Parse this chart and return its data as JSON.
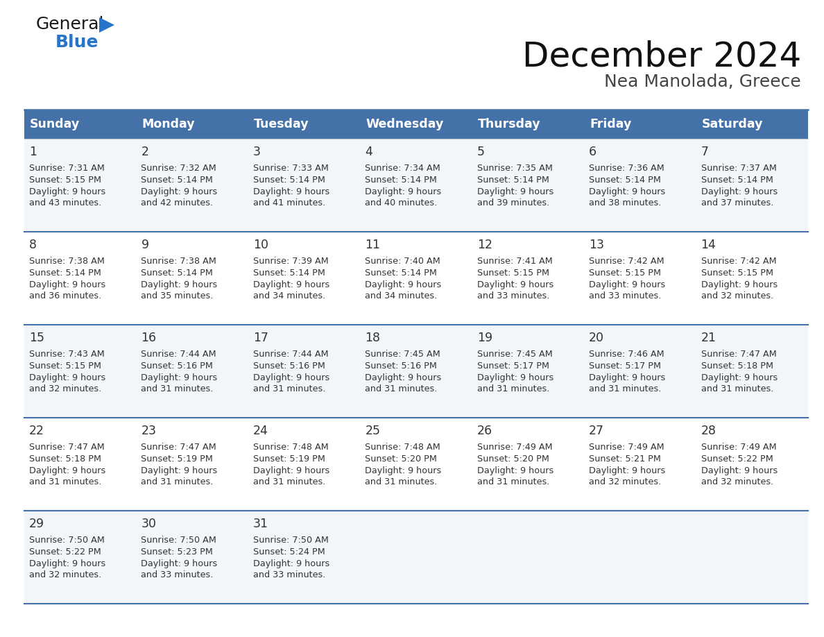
{
  "title": "December 2024",
  "subtitle": "Nea Manolada, Greece",
  "days_of_week": [
    "Sunday",
    "Monday",
    "Tuesday",
    "Wednesday",
    "Thursday",
    "Friday",
    "Saturday"
  ],
  "header_bg": "#4472a8",
  "header_text": "#ffffff",
  "row_bg_odd": "#f2f5f9",
  "row_bg_even": "#ffffff",
  "border_color": "#4472a8",
  "text_color": "#333333",
  "logo_color_general": "#1a1a1a",
  "logo_color_blue": "#2874c8",
  "logo_triangle_color": "#2874c8",
  "title_color": "#111111",
  "subtitle_color": "#444444",
  "calendar_data": [
    [
      {
        "day": 1,
        "sunrise": "7:31 AM",
        "sunset": "5:15 PM",
        "daylight": "9 hours\nand 43 minutes."
      },
      {
        "day": 2,
        "sunrise": "7:32 AM",
        "sunset": "5:14 PM",
        "daylight": "9 hours\nand 42 minutes."
      },
      {
        "day": 3,
        "sunrise": "7:33 AM",
        "sunset": "5:14 PM",
        "daylight": "9 hours\nand 41 minutes."
      },
      {
        "day": 4,
        "sunrise": "7:34 AM",
        "sunset": "5:14 PM",
        "daylight": "9 hours\nand 40 minutes."
      },
      {
        "day": 5,
        "sunrise": "7:35 AM",
        "sunset": "5:14 PM",
        "daylight": "9 hours\nand 39 minutes."
      },
      {
        "day": 6,
        "sunrise": "7:36 AM",
        "sunset": "5:14 PM",
        "daylight": "9 hours\nand 38 minutes."
      },
      {
        "day": 7,
        "sunrise": "7:37 AM",
        "sunset": "5:14 PM",
        "daylight": "9 hours\nand 37 minutes."
      }
    ],
    [
      {
        "day": 8,
        "sunrise": "7:38 AM",
        "sunset": "5:14 PM",
        "daylight": "9 hours\nand 36 minutes."
      },
      {
        "day": 9,
        "sunrise": "7:38 AM",
        "sunset": "5:14 PM",
        "daylight": "9 hours\nand 35 minutes."
      },
      {
        "day": 10,
        "sunrise": "7:39 AM",
        "sunset": "5:14 PM",
        "daylight": "9 hours\nand 34 minutes."
      },
      {
        "day": 11,
        "sunrise": "7:40 AM",
        "sunset": "5:14 PM",
        "daylight": "9 hours\nand 34 minutes."
      },
      {
        "day": 12,
        "sunrise": "7:41 AM",
        "sunset": "5:15 PM",
        "daylight": "9 hours\nand 33 minutes."
      },
      {
        "day": 13,
        "sunrise": "7:42 AM",
        "sunset": "5:15 PM",
        "daylight": "9 hours\nand 33 minutes."
      },
      {
        "day": 14,
        "sunrise": "7:42 AM",
        "sunset": "5:15 PM",
        "daylight": "9 hours\nand 32 minutes."
      }
    ],
    [
      {
        "day": 15,
        "sunrise": "7:43 AM",
        "sunset": "5:15 PM",
        "daylight": "9 hours\nand 32 minutes."
      },
      {
        "day": 16,
        "sunrise": "7:44 AM",
        "sunset": "5:16 PM",
        "daylight": "9 hours\nand 31 minutes."
      },
      {
        "day": 17,
        "sunrise": "7:44 AM",
        "sunset": "5:16 PM",
        "daylight": "9 hours\nand 31 minutes."
      },
      {
        "day": 18,
        "sunrise": "7:45 AM",
        "sunset": "5:16 PM",
        "daylight": "9 hours\nand 31 minutes."
      },
      {
        "day": 19,
        "sunrise": "7:45 AM",
        "sunset": "5:17 PM",
        "daylight": "9 hours\nand 31 minutes."
      },
      {
        "day": 20,
        "sunrise": "7:46 AM",
        "sunset": "5:17 PM",
        "daylight": "9 hours\nand 31 minutes."
      },
      {
        "day": 21,
        "sunrise": "7:47 AM",
        "sunset": "5:18 PM",
        "daylight": "9 hours\nand 31 minutes."
      }
    ],
    [
      {
        "day": 22,
        "sunrise": "7:47 AM",
        "sunset": "5:18 PM",
        "daylight": "9 hours\nand 31 minutes."
      },
      {
        "day": 23,
        "sunrise": "7:47 AM",
        "sunset": "5:19 PM",
        "daylight": "9 hours\nand 31 minutes."
      },
      {
        "day": 24,
        "sunrise": "7:48 AM",
        "sunset": "5:19 PM",
        "daylight": "9 hours\nand 31 minutes."
      },
      {
        "day": 25,
        "sunrise": "7:48 AM",
        "sunset": "5:20 PM",
        "daylight": "9 hours\nand 31 minutes."
      },
      {
        "day": 26,
        "sunrise": "7:49 AM",
        "sunset": "5:20 PM",
        "daylight": "9 hours\nand 31 minutes."
      },
      {
        "day": 27,
        "sunrise": "7:49 AM",
        "sunset": "5:21 PM",
        "daylight": "9 hours\nand 32 minutes."
      },
      {
        "day": 28,
        "sunrise": "7:49 AM",
        "sunset": "5:22 PM",
        "daylight": "9 hours\nand 32 minutes."
      }
    ],
    [
      {
        "day": 29,
        "sunrise": "7:50 AM",
        "sunset": "5:22 PM",
        "daylight": "9 hours\nand 32 minutes."
      },
      {
        "day": 30,
        "sunrise": "7:50 AM",
        "sunset": "5:23 PM",
        "daylight": "9 hours\nand 33 minutes."
      },
      {
        "day": 31,
        "sunrise": "7:50 AM",
        "sunset": "5:24 PM",
        "daylight": "9 hours\nand 33 minutes."
      },
      null,
      null,
      null,
      null
    ]
  ]
}
